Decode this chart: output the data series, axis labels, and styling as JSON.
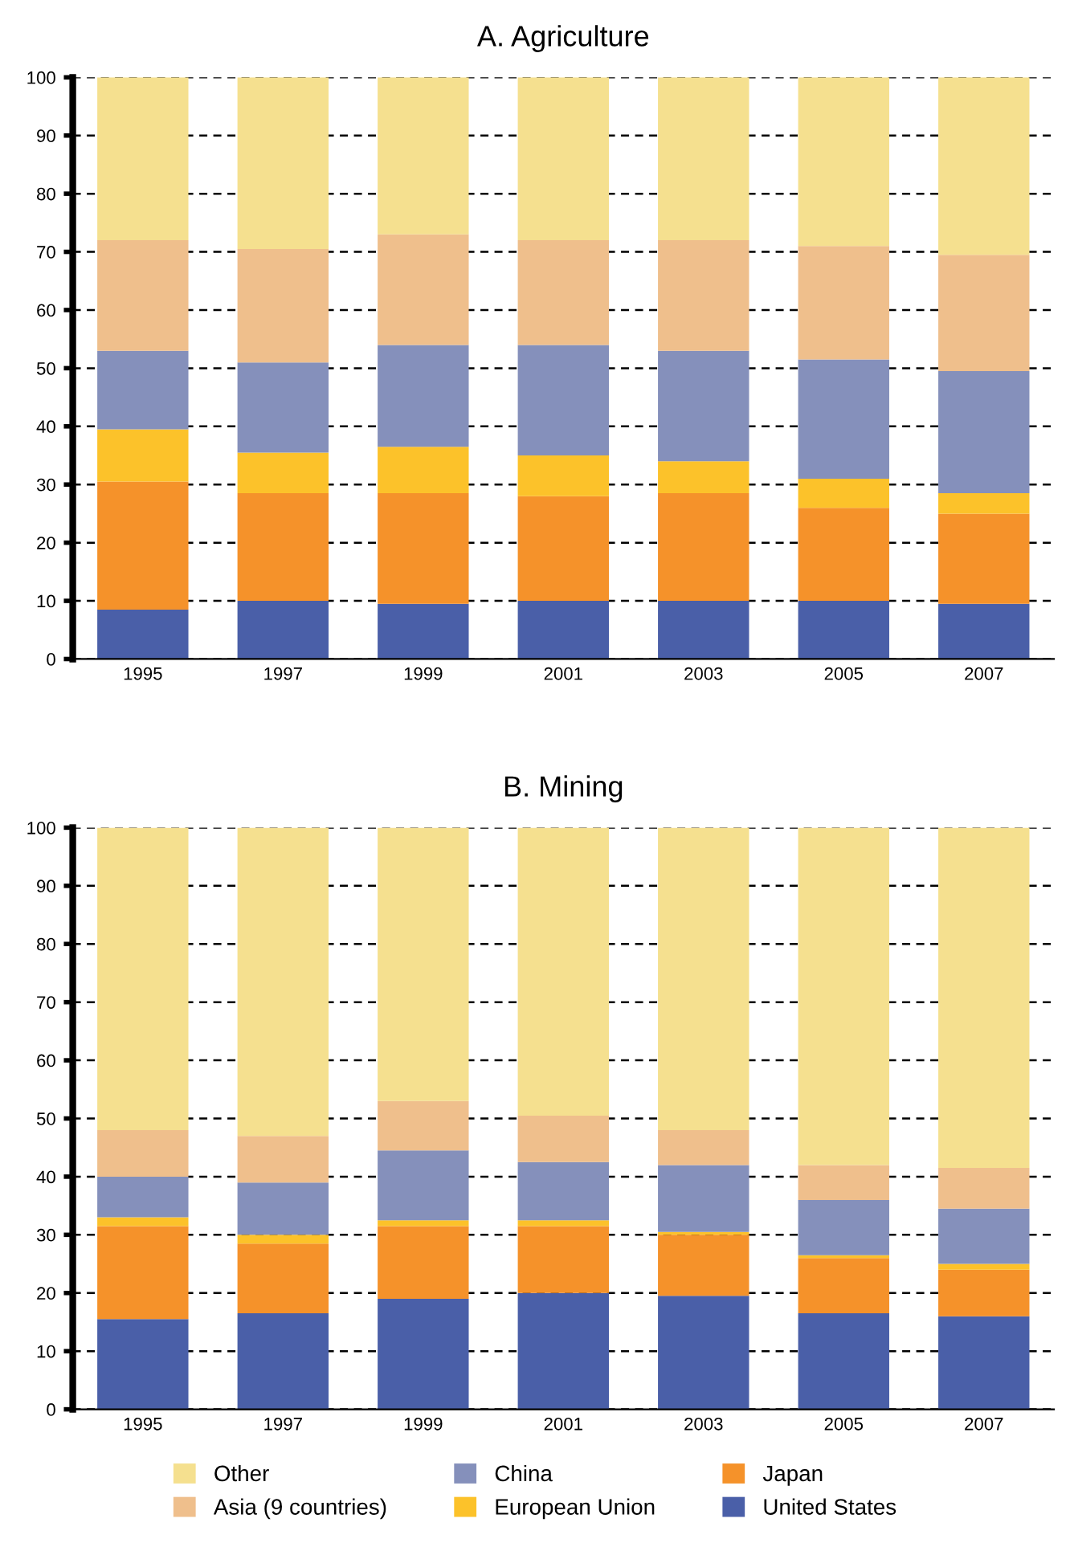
{
  "chart_data": [
    {
      "type": "bar",
      "title": "A. Agriculture",
      "stacked": true,
      "categories": [
        "1995",
        "1997",
        "1999",
        "2001",
        "2003",
        "2005",
        "2007"
      ],
      "ylim": [
        0,
        100
      ],
      "yticks": [
        0,
        10,
        20,
        30,
        40,
        50,
        60,
        70,
        80,
        90,
        100
      ],
      "grid": "y",
      "legend": "bottom",
      "series": [
        {
          "name": "United States",
          "color": "#4a5fa8",
          "values": [
            8.5,
            10,
            9.5,
            10,
            10,
            10,
            9.5
          ]
        },
        {
          "name": "Japan",
          "color": "#f5922a",
          "values": [
            22,
            18.5,
            19,
            18,
            18.5,
            16,
            15.5
          ]
        },
        {
          "name": "European Union",
          "color": "#fcc22a",
          "values": [
            9,
            7,
            8,
            7,
            5.5,
            5,
            3.5
          ]
        },
        {
          "name": "China",
          "color": "#8590bb",
          "values": [
            13.5,
            15.5,
            17.5,
            19,
            19,
            20.5,
            21
          ]
        },
        {
          "name": "Asia (9 countries)",
          "color": "#efbf8c",
          "values": [
            19,
            19.5,
            19,
            18,
            19,
            19.5,
            20
          ]
        },
        {
          "name": "Other",
          "color": "#f5e08f",
          "values": [
            28,
            29.5,
            27,
            28,
            28,
            29,
            30.5
          ]
        }
      ]
    },
    {
      "type": "bar",
      "title": "B. Mining",
      "stacked": true,
      "categories": [
        "1995",
        "1997",
        "1999",
        "2001",
        "2003",
        "2005",
        "2007"
      ],
      "ylim": [
        0,
        100
      ],
      "yticks": [
        0,
        10,
        20,
        30,
        40,
        50,
        60,
        70,
        80,
        90,
        100
      ],
      "grid": "y",
      "series": [
        {
          "color": "#4a5fa8",
          "values": [
            15.5,
            16.5,
            19,
            20,
            19.5,
            16.5,
            16
          ]
        },
        {
          "color": "#f5922a",
          "values": [
            16,
            12,
            12.5,
            11.5,
            10.5,
            9.5,
            8
          ]
        },
        {
          "color": "#fcc22a",
          "values": [
            1.5,
            1.5,
            1,
            1,
            0.5,
            0.5,
            1
          ]
        },
        {
          "color": "#8590bb",
          "values": [
            7,
            9,
            12,
            10,
            11.5,
            9.5,
            9.5
          ]
        },
        {
          "color": "#efbf8c",
          "values": [
            8,
            8,
            8.5,
            8,
            6,
            6,
            7
          ]
        },
        {
          "color": "#f5e08f",
          "values": [
            52,
            53,
            47,
            49.5,
            52,
            58,
            58.5
          ]
        }
      ]
    }
  ]
}
